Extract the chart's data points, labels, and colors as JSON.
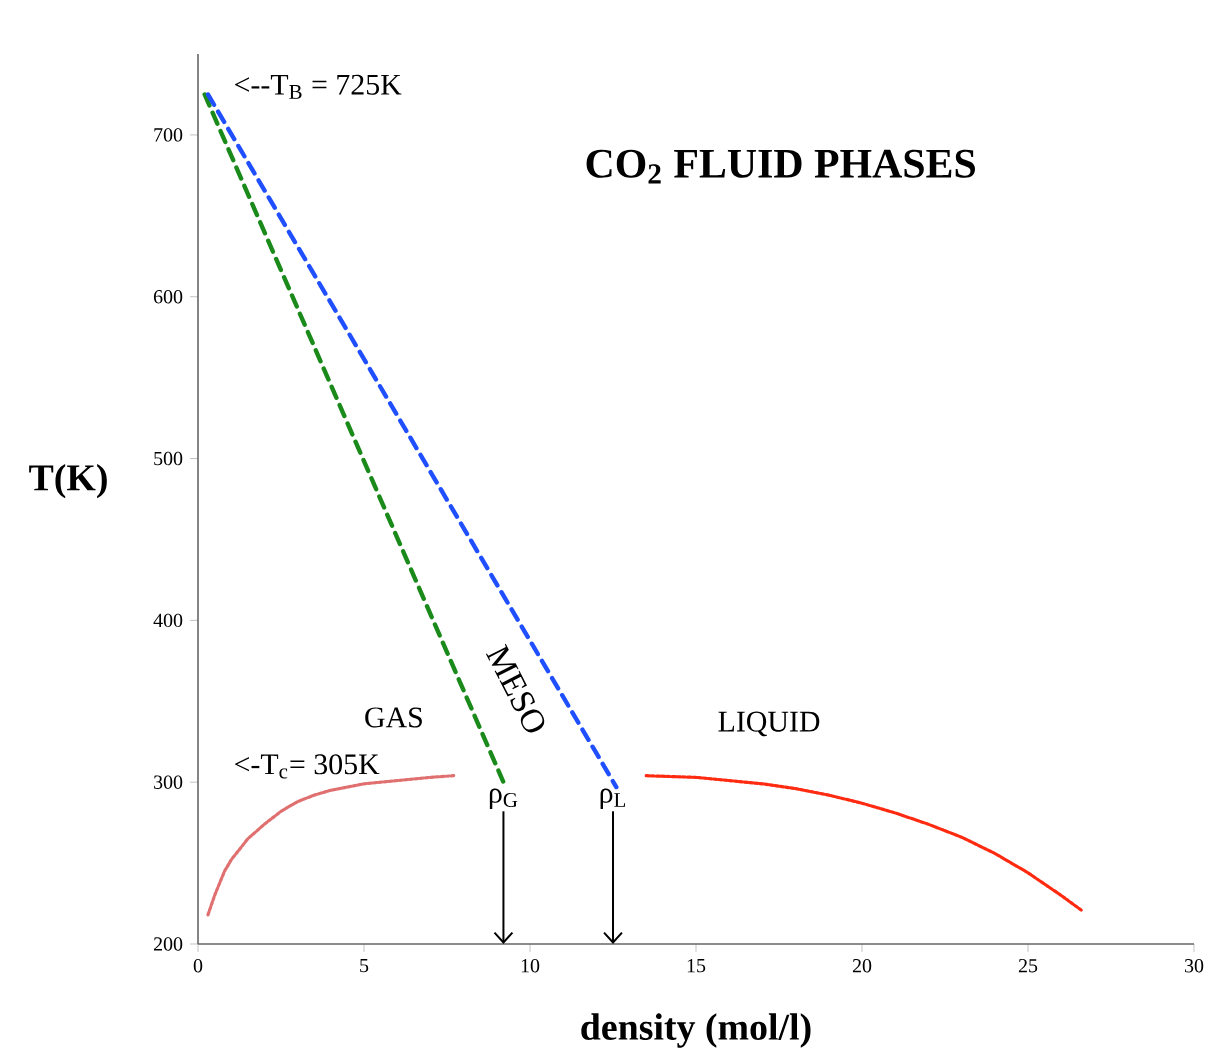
{
  "chart_data": {
    "type": "line",
    "title": "CO$_{2}$ FLUID PHASES",
    "xlabel": "density (mol/l)",
    "ylabel": "T(K)",
    "xlim": [
      0,
      30
    ],
    "xticks": [
      0,
      5,
      10,
      15,
      20,
      25,
      30
    ],
    "ylim": [
      200,
      750
    ],
    "yticks": [
      200,
      300,
      400,
      500,
      600,
      700
    ],
    "series": [
      {
        "color": "#e07070",
        "line_style": "dotted",
        "x": [
          0.3,
          0.5,
          0.8,
          1,
          1.5,
          2,
          2.5,
          3,
          3.5,
          4,
          5,
          6,
          7,
          7.7
        ],
        "values": [
          218,
          230,
          245,
          252,
          265,
          274,
          282,
          288,
          292,
          295,
          299,
          301,
          303,
          304
        ]
      },
      {
        "color": "#ff2a10",
        "line_style": "dotted",
        "x": [
          13.5,
          15,
          16,
          17,
          18,
          19,
          20,
          21,
          22,
          23,
          24,
          25,
          26,
          26.6
        ],
        "values": [
          304,
          303,
          301,
          299,
          296,
          292,
          287,
          281,
          274,
          266,
          256,
          244,
          230,
          221
        ]
      },
      {
        "color": "#1a8a1a",
        "line_style": "dashed",
        "x": [
          0.2,
          9.2
        ],
        "values": [
          725,
          300
        ]
      },
      {
        "color": "#1f4fff",
        "line_style": "dashed",
        "x": [
          0.3,
          12.6
        ],
        "values": [
          725,
          297
        ]
      }
    ],
    "annotations": [
      "<--T$_{B}$ = 725K",
      "<-T$_{c}$= 305K",
      "GAS",
      "LIQUID",
      "MESO",
      "ρ$_{G}$",
      "ρ$_{L}$"
    ]
  }
}
